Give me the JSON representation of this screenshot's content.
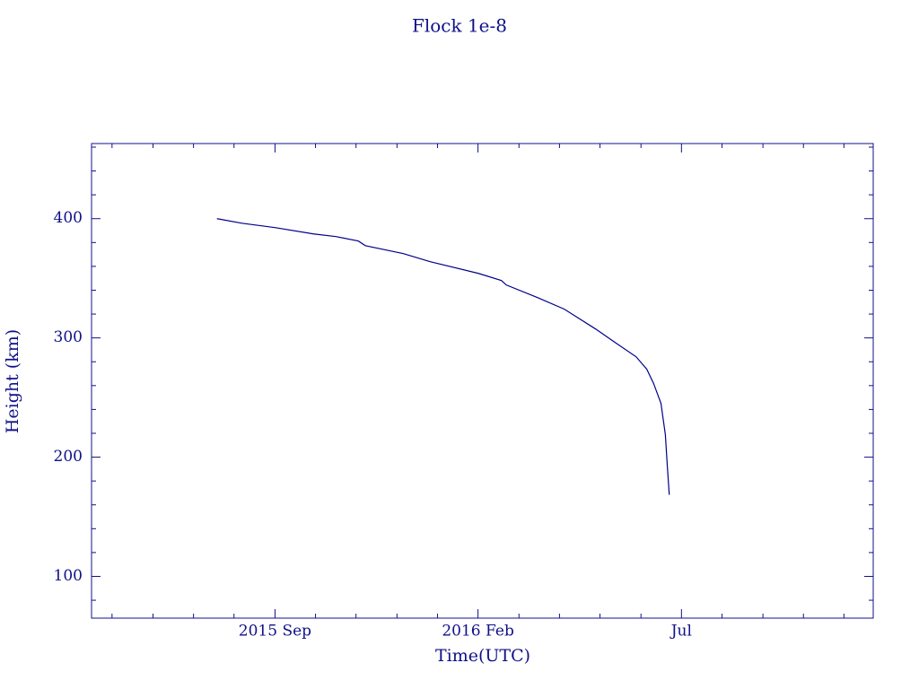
{
  "chart_data": {
    "type": "line",
    "title": "Flock 1e-8",
    "xlabel": "Time(UTC)",
    "ylabel": "Height (km)",
    "x": [
      2015.548,
      2015.599,
      2015.667,
      2015.746,
      2015.792,
      2015.838,
      2015.852,
      2015.93,
      2015.985,
      2016.084,
      2016.131,
      2016.141,
      2016.205,
      2016.26,
      2016.324,
      2016.361,
      2016.407,
      2016.429,
      2016.443,
      2016.458,
      2016.467,
      2016.471,
      2016.475
    ],
    "series": [
      {
        "color": "#00008b",
        "values": [
          400,
          396.2,
          392.5,
          387.2,
          385,
          381.2,
          377.4,
          370.7,
          363.9,
          354.1,
          348.1,
          344.4,
          333.8,
          324.1,
          307.5,
          297,
          284.2,
          273.7,
          261.7,
          245.1,
          218.8,
          192.5,
          168.4
        ]
      }
    ],
    "xlim": [
      2015.291,
      2016.893
    ],
    "xticks": [
      {
        "value": 2015.667,
        "label": "2015 Sep"
      },
      {
        "value": 2016.083,
        "label": "2016 Feb"
      },
      {
        "value": 2016.5,
        "label": "Jul"
      }
    ],
    "xminorticks": [
      2015.333,
      2015.417,
      2015.5,
      2015.583,
      2015.75,
      2015.833,
      2015.917,
      2016.0,
      2016.167,
      2016.25,
      2016.333,
      2016.417,
      2016.583,
      2016.667,
      2016.75,
      2016.833
    ],
    "ylim": [
      65,
      463
    ],
    "yticks": [
      100,
      200,
      300,
      400
    ],
    "yminorticks": [
      80,
      120,
      140,
      160,
      180,
      220,
      240,
      260,
      280,
      320,
      340,
      360,
      380,
      420,
      440,
      460
    ],
    "grid": false
  }
}
